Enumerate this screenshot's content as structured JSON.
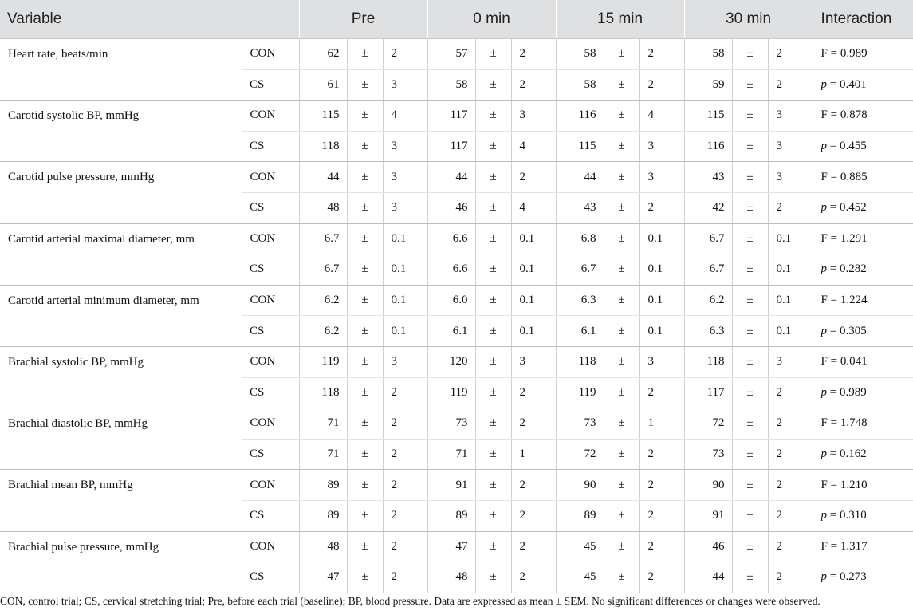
{
  "header": {
    "variable": "Variable",
    "timepoints": [
      "Pre",
      "0 min",
      "15 min",
      "30 min"
    ],
    "interaction": "Interaction"
  },
  "pm": "±",
  "rows": [
    {
      "variable": "Heart rate, beats/min",
      "trials": [
        {
          "trial": "CON",
          "values": [
            [
              "62",
              "2"
            ],
            [
              "57",
              "2"
            ],
            [
              "58",
              "2"
            ],
            [
              "58",
              "2"
            ]
          ],
          "stat_label": "F",
          "stat_value": "0.989"
        },
        {
          "trial": "CS",
          "values": [
            [
              "61",
              "3"
            ],
            [
              "58",
              "2"
            ],
            [
              "58",
              "2"
            ],
            [
              "59",
              "2"
            ]
          ],
          "stat_label": "p",
          "stat_value": "0.401"
        }
      ]
    },
    {
      "variable": "Carotid systolic BP, mmHg",
      "trials": [
        {
          "trial": "CON",
          "values": [
            [
              "115",
              "4"
            ],
            [
              "117",
              "3"
            ],
            [
              "116",
              "4"
            ],
            [
              "115",
              "3"
            ]
          ],
          "stat_label": "F",
          "stat_value": "0.878"
        },
        {
          "trial": "CS",
          "values": [
            [
              "118",
              "3"
            ],
            [
              "117",
              "4"
            ],
            [
              "115",
              "3"
            ],
            [
              "116",
              "3"
            ]
          ],
          "stat_label": "p",
          "stat_value": "0.455"
        }
      ]
    },
    {
      "variable": "Carotid pulse pressure, mmHg",
      "trials": [
        {
          "trial": "CON",
          "values": [
            [
              "44",
              "3"
            ],
            [
              "44",
              "2"
            ],
            [
              "44",
              "3"
            ],
            [
              "43",
              "3"
            ]
          ],
          "stat_label": "F",
          "stat_value": "0.885"
        },
        {
          "trial": "CS",
          "values": [
            [
              "48",
              "3"
            ],
            [
              "46",
              "4"
            ],
            [
              "43",
              "2"
            ],
            [
              "42",
              "2"
            ]
          ],
          "stat_label": "p",
          "stat_value": "0.452"
        }
      ]
    },
    {
      "variable": "Carotid arterial maximal diameter, mm",
      "trials": [
        {
          "trial": "CON",
          "values": [
            [
              "6.7",
              "0.1"
            ],
            [
              "6.6",
              "0.1"
            ],
            [
              "6.8",
              "0.1"
            ],
            [
              "6.7",
              "0.1"
            ]
          ],
          "stat_label": "F",
          "stat_value": "1.291"
        },
        {
          "trial": "CS",
          "values": [
            [
              "6.7",
              "0.1"
            ],
            [
              "6.6",
              "0.1"
            ],
            [
              "6.7",
              "0.1"
            ],
            [
              "6.7",
              "0.1"
            ]
          ],
          "stat_label": "p",
          "stat_value": "0.282"
        }
      ]
    },
    {
      "variable": "Carotid arterial minimum diameter, mm",
      "trials": [
        {
          "trial": "CON",
          "values": [
            [
              "6.2",
              "0.1"
            ],
            [
              "6.0",
              "0.1"
            ],
            [
              "6.3",
              "0.1"
            ],
            [
              "6.2",
              "0.1"
            ]
          ],
          "stat_label": "F",
          "stat_value": "1.224"
        },
        {
          "trial": "CS",
          "values": [
            [
              "6.2",
              "0.1"
            ],
            [
              "6.1",
              "0.1"
            ],
            [
              "6.1",
              "0.1"
            ],
            [
              "6.3",
              "0.1"
            ]
          ],
          "stat_label": "p",
          "stat_value": "0.305"
        }
      ]
    },
    {
      "variable": "Brachial systolic BP, mmHg",
      "trials": [
        {
          "trial": "CON",
          "values": [
            [
              "119",
              "3"
            ],
            [
              "120",
              "3"
            ],
            [
              "118",
              "3"
            ],
            [
              "118",
              "3"
            ]
          ],
          "stat_label": "F",
          "stat_value": "0.041"
        },
        {
          "trial": "CS",
          "values": [
            [
              "118",
              "2"
            ],
            [
              "119",
              "2"
            ],
            [
              "119",
              "2"
            ],
            [
              "117",
              "2"
            ]
          ],
          "stat_label": "p",
          "stat_value": "0.989"
        }
      ]
    },
    {
      "variable": "Brachial diastolic BP, mmHg",
      "trials": [
        {
          "trial": "CON",
          "values": [
            [
              "71",
              "2"
            ],
            [
              "73",
              "2"
            ],
            [
              "73",
              "1"
            ],
            [
              "72",
              "2"
            ]
          ],
          "stat_label": "F",
          "stat_value": "1.748"
        },
        {
          "trial": "CS",
          "values": [
            [
              "71",
              "2"
            ],
            [
              "71",
              "1"
            ],
            [
              "72",
              "2"
            ],
            [
              "73",
              "2"
            ]
          ],
          "stat_label": "p",
          "stat_value": "0.162"
        }
      ]
    },
    {
      "variable": "Brachial mean BP, mmHg",
      "trials": [
        {
          "trial": "CON",
          "values": [
            [
              "89",
              "2"
            ],
            [
              "91",
              "2"
            ],
            [
              "90",
              "2"
            ],
            [
              "90",
              "2"
            ]
          ],
          "stat_label": "F",
          "stat_value": "1.210"
        },
        {
          "trial": "CS",
          "values": [
            [
              "89",
              "2"
            ],
            [
              "89",
              "2"
            ],
            [
              "89",
              "2"
            ],
            [
              "91",
              "2"
            ]
          ],
          "stat_label": "p",
          "stat_value": "0.310"
        }
      ]
    },
    {
      "variable": "Brachial pulse pressure, mmHg",
      "trials": [
        {
          "trial": "CON",
          "values": [
            [
              "48",
              "2"
            ],
            [
              "47",
              "2"
            ],
            [
              "45",
              "2"
            ],
            [
              "46",
              "2"
            ]
          ],
          "stat_label": "F",
          "stat_value": "1.317"
        },
        {
          "trial": "CS",
          "values": [
            [
              "47",
              "2"
            ],
            [
              "48",
              "2"
            ],
            [
              "45",
              "2"
            ],
            [
              "44",
              "2"
            ]
          ],
          "stat_label": "p",
          "stat_value": "0.273"
        }
      ]
    }
  ],
  "footnote": "CON, control trial; CS, cervical stretching trial; Pre, before each trial (baseline); BP, blood pressure. Data are expressed as mean ± SEM. No significant differences or changes were observed."
}
